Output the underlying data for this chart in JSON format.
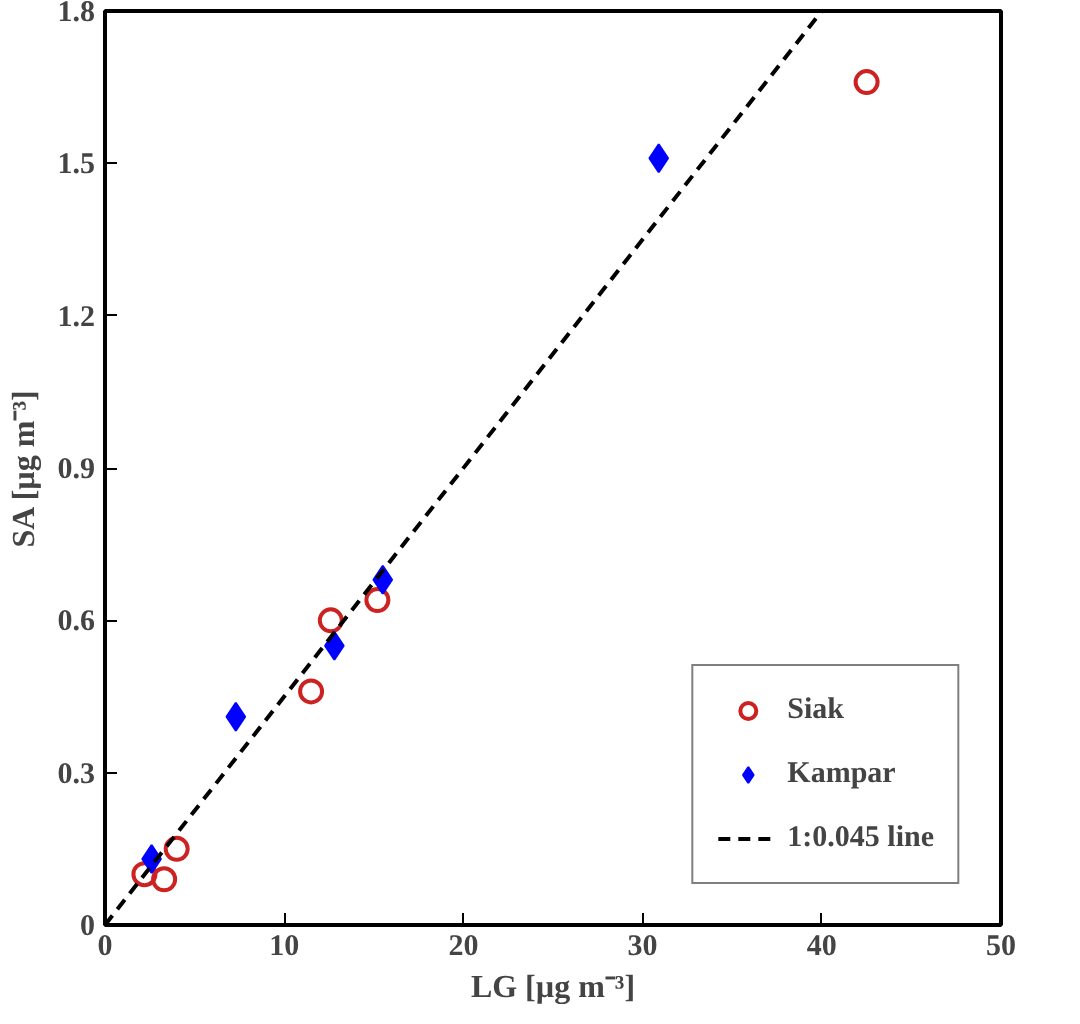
{
  "chart_data": {
    "type": "scatter",
    "xlabel": "LG [µg m⁻³]",
    "ylabel": "SA [µg m⁻³]",
    "xlim": [
      0,
      50
    ],
    "ylim": [
      0,
      1.8
    ],
    "xticks": [
      0,
      10,
      20,
      30,
      40,
      50
    ],
    "yticks": [
      0,
      0.3,
      0.6,
      0.9,
      1.2,
      1.5,
      1.8
    ],
    "grid": false,
    "legend": "bottom right",
    "series": [
      {
        "name": "Siak",
        "color": "#cc2222",
        "marker": "circle",
        "x": [
          2.2,
          3.3,
          4.0,
          11.5,
          12.6,
          15.2,
          42.5
        ],
        "values": [
          0.1,
          0.09,
          0.15,
          0.46,
          0.6,
          0.64,
          1.66
        ]
      },
      {
        "name": "Kampar",
        "color": "#0000ff",
        "marker": "diamond",
        "x": [
          2.6,
          7.3,
          12.8,
          15.5,
          30.9
        ],
        "values": [
          0.13,
          0.41,
          0.55,
          0.68,
          1.51
        ]
      },
      {
        "name": "1:0.045 line",
        "color": "#000000",
        "type": "line",
        "line_style": "dashed",
        "x": [
          0,
          40
        ],
        "values": [
          0,
          1.8
        ]
      }
    ]
  }
}
